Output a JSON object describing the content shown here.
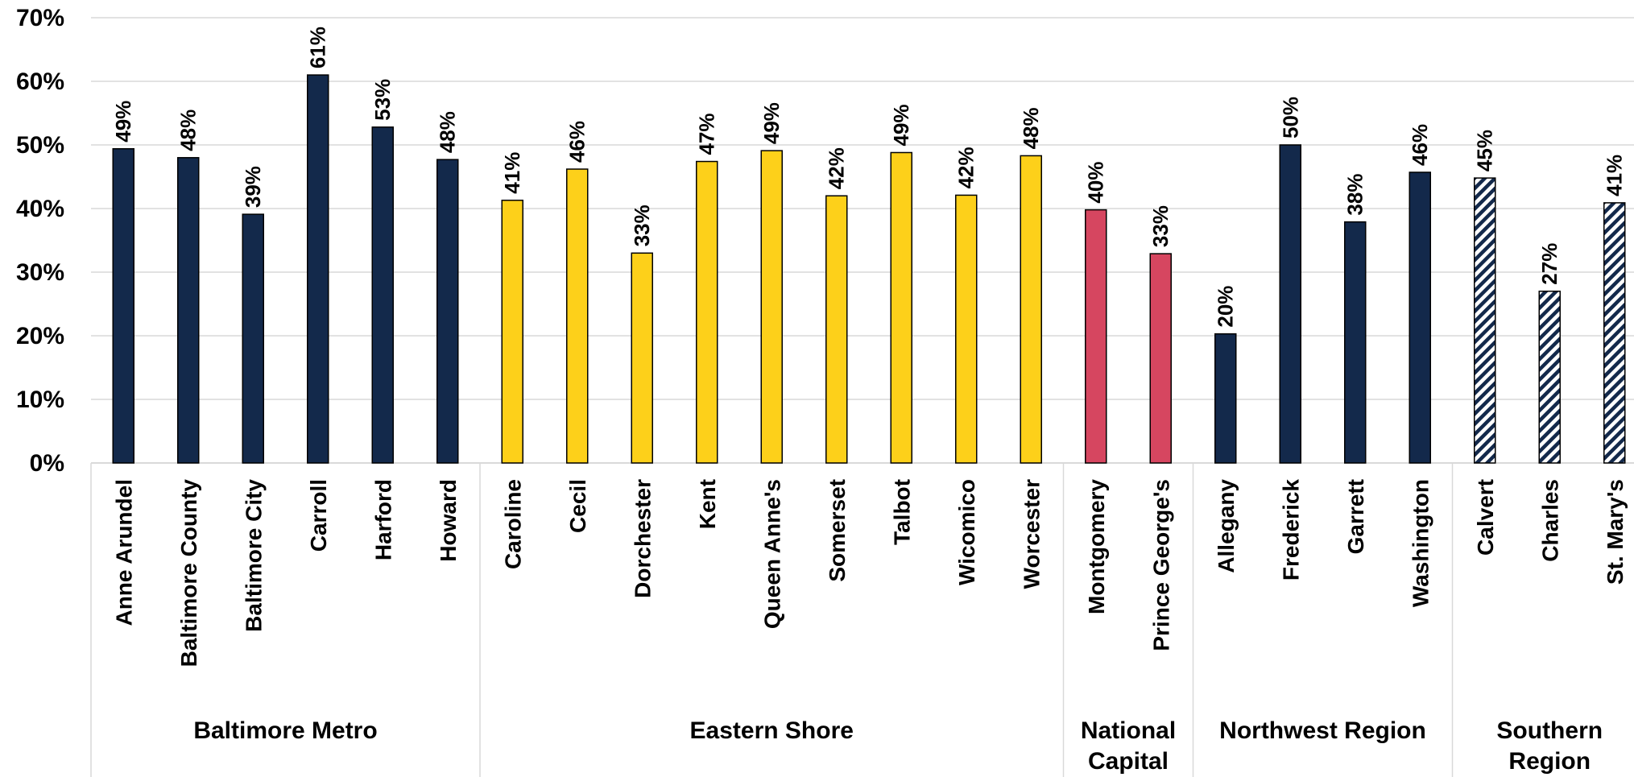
{
  "chart_data": {
    "type": "bar",
    "title": "",
    "xlabel": "",
    "ylabel": "",
    "ylim": [
      0,
      70
    ],
    "yticks": [
      0,
      10,
      20,
      30,
      40,
      50,
      60,
      70
    ],
    "ytick_format": "{v}%",
    "grid": true,
    "legend": "none",
    "colors": {
      "Baltimore Metro": "#13294b",
      "Eastern Shore": "#fdd01a",
      "National Capital": "#d64660",
      "Northwest Region": "#13294b",
      "Southern Region": "hatched #13294b on white"
    },
    "groups": [
      {
        "label_lines": [
          "Baltimore Metro"
        ],
        "start": 0,
        "count": 6,
        "color": "#13294b",
        "pattern": "solid"
      },
      {
        "label_lines": [
          "Eastern Shore"
        ],
        "start": 6,
        "count": 9,
        "color": "#fdd01a",
        "pattern": "solid"
      },
      {
        "label_lines": [
          "National",
          "Capital"
        ],
        "start": 15,
        "count": 2,
        "color": "#d64660",
        "pattern": "solid"
      },
      {
        "label_lines": [
          "Northwest Region"
        ],
        "start": 17,
        "count": 4,
        "color": "#13294b",
        "pattern": "solid"
      },
      {
        "label_lines": [
          "Southern",
          "Region"
        ],
        "start": 21,
        "count": 3,
        "color": "#13294b",
        "pattern": "hatch"
      }
    ],
    "categories": [
      "Anne Arundel",
      "Baltimore County",
      "Baltimore City",
      "Carroll",
      "Harford",
      "Howard",
      "Caroline",
      "Cecil",
      "Dorchester",
      "Kent",
      "Queen Anne's",
      "Somerset",
      "Talbot",
      "Wicomico",
      "Worcester",
      "Montgomery",
      "Prince George's",
      "Allegany",
      "Frederick",
      "Garrett",
      "Washington",
      "Calvert",
      "Charles",
      "St. Mary's"
    ],
    "values": [
      49.4,
      48,
      39.1,
      61,
      52.8,
      47.7,
      41.3,
      46.2,
      33,
      47.4,
      49.1,
      42,
      48.8,
      42.1,
      48.3,
      39.8,
      32.9,
      20.3,
      50,
      37.9,
      45.7,
      44.8,
      27,
      40.9
    ],
    "value_labels": [
      "49%",
      "48%",
      "39%",
      "61%",
      "53%",
      "48%",
      "41%",
      "46%",
      "33%",
      "47%",
      "49%",
      "42%",
      "49%",
      "42%",
      "48%",
      "40%",
      "33%",
      "20%",
      "50%",
      "38%",
      "46%",
      "45%",
      "27%",
      "41%"
    ]
  }
}
